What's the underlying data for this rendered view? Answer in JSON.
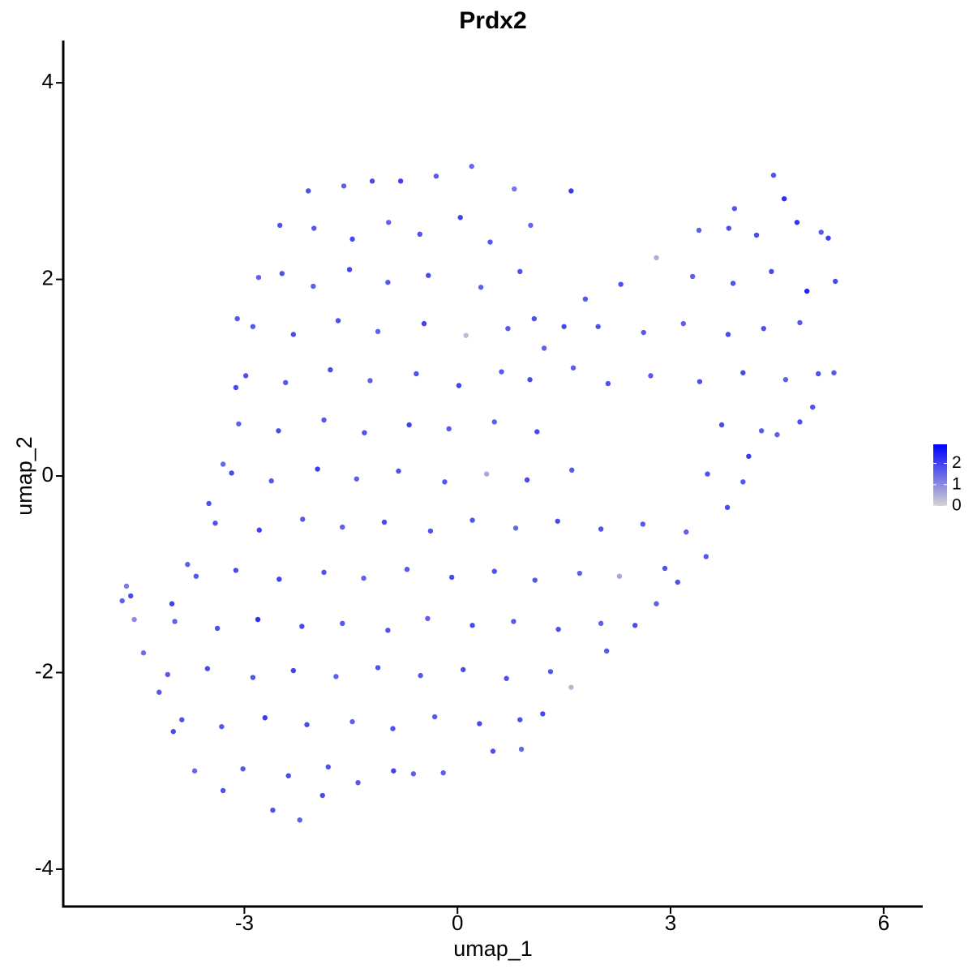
{
  "chart_data": {
    "type": "scatter",
    "title": "Prdx2",
    "x_label": "umap_1",
    "y_label": "umap_2",
    "xlim": [
      -5.55,
      6.55
    ],
    "ylim": [
      -4.38,
      4.43
    ],
    "xticks": [
      -3,
      0,
      3,
      6
    ],
    "yticks": [
      -4,
      -2,
      0,
      2,
      4
    ],
    "color_low": "#d3d3d3",
    "color_high": "#0000ff",
    "clim": [
      0,
      2.9
    ],
    "cticks": [
      0,
      1,
      2
    ],
    "x": [
      -4.72,
      -4.66,
      -4.6,
      -4.55,
      -4.42,
      -2.1,
      -1.6,
      -1.2,
      -0.8,
      -0.3,
      0.2,
      0.8,
      1.6,
      -2.5,
      -2.8,
      -3.1,
      -3.12,
      -3.3,
      -3.5,
      -3.8,
      -4.02,
      -4.2,
      -4.0,
      -3.7,
      -3.3,
      -2.6,
      -2.22,
      -1.9,
      -1.4,
      -0.9,
      -0.2,
      0.5,
      0.9,
      1.2,
      1.6,
      2.1,
      2.5,
      2.8,
      3.1,
      3.5,
      3.8,
      4.1,
      4.5,
      5.0,
      5.3,
      5.32,
      5.22,
      4.6,
      4.45,
      3.9,
      3.4,
      2.8,
      2.3,
      1.8,
      1.5,
      1.22,
      -2.02,
      -1.48,
      -0.97,
      -0.53,
      0.04,
      0.46,
      1.03,
      -2.47,
      -2.03,
      -1.52,
      -0.98,
      -0.41,
      0.33,
      0.88,
      -2.88,
      -2.31,
      -1.68,
      -1.12,
      -0.47,
      0.12,
      0.71,
      1.08,
      -2.98,
      -2.42,
      -1.79,
      -1.23,
      -0.58,
      0.02,
      0.62,
      1.02,
      1.63,
      2.12,
      -3.08,
      -2.52,
      -1.88,
      -1.31,
      -0.68,
      -0.12,
      0.52,
      1.12,
      -3.18,
      -2.62,
      -1.97,
      -1.42,
      -0.83,
      -0.18,
      0.41,
      0.98,
      1.61,
      -3.41,
      -2.79,
      -2.18,
      -1.62,
      -1.03,
      -0.38,
      0.21,
      0.82,
      1.41,
      2.02,
      2.61,
      3.22,
      -3.68,
      -3.12,
      -2.51,
      -1.88,
      -1.32,
      -0.71,
      -0.08,
      0.52,
      1.09,
      1.72,
      2.28,
      2.92,
      -3.98,
      -3.38,
      -2.81,
      -2.19,
      -1.62,
      -0.98,
      -0.42,
      0.21,
      0.79,
      1.42,
      2.02,
      -4.08,
      -3.52,
      -2.88,
      -2.31,
      -1.71,
      -1.12,
      -0.52,
      0.08,
      0.69,
      1.31,
      -3.88,
      -3.32,
      -2.71,
      -2.12,
      -1.48,
      -0.91,
      -0.32,
      0.31,
      0.88,
      -3.02,
      -2.38,
      -1.82,
      -0.62,
      3.82,
      4.21,
      4.78,
      5.12,
      3.31,
      3.88,
      4.42,
      4.92,
      1.98,
      2.62,
      3.18,
      3.81,
      4.31,
      4.82,
      2.72,
      3.41,
      4.02,
      4.62,
      5.08,
      3.72,
      4.28,
      4.82,
      3.52,
      4.02
    ],
    "y": [
      -1.27,
      -1.12,
      -1.22,
      -1.46,
      -1.8,
      2.9,
      2.95,
      3.0,
      3.0,
      3.05,
      3.15,
      2.92,
      2.9,
      2.55,
      2.02,
      1.6,
      0.9,
      0.12,
      -0.28,
      -0.9,
      -1.3,
      -2.2,
      -2.6,
      -3.0,
      -3.2,
      -3.4,
      -3.5,
      -3.25,
      -3.12,
      -3.0,
      -3.02,
      -2.8,
      -2.78,
      -2.42,
      -2.15,
      -1.78,
      -1.52,
      -1.3,
      -1.08,
      -0.82,
      -0.32,
      0.2,
      0.42,
      0.7,
      1.05,
      1.98,
      2.42,
      2.82,
      3.06,
      2.72,
      2.5,
      2.22,
      1.95,
      1.8,
      1.52,
      1.3,
      2.52,
      2.41,
      2.58,
      2.46,
      2.63,
      2.38,
      2.55,
      2.06,
      1.93,
      2.1,
      1.97,
      2.04,
      1.92,
      2.08,
      1.52,
      1.44,
      1.58,
      1.47,
      1.55,
      1.43,
      1.5,
      1.6,
      1.02,
      0.95,
      1.08,
      0.97,
      1.04,
      0.92,
      1.06,
      0.98,
      1.1,
      0.94,
      0.53,
      0.46,
      0.57,
      0.44,
      0.52,
      0.48,
      0.55,
      0.45,
      0.03,
      -0.05,
      0.07,
      -0.03,
      0.05,
      -0.06,
      0.02,
      -0.04,
      0.06,
      -0.48,
      -0.55,
      -0.44,
      -0.52,
      -0.47,
      -0.56,
      -0.45,
      -0.53,
      -0.46,
      -0.54,
      -0.49,
      -0.57,
      -1.02,
      -0.96,
      -1.05,
      -0.98,
      -1.04,
      -0.95,
      -1.03,
      -0.97,
      -1.06,
      -0.99,
      -1.02,
      -0.94,
      -1.48,
      -1.55,
      -1.46,
      -1.53,
      -1.5,
      -1.57,
      -1.45,
      -1.52,
      -1.48,
      -1.56,
      -1.5,
      -2.02,
      -1.96,
      -2.05,
      -1.98,
      -2.04,
      -1.95,
      -2.03,
      -1.97,
      -2.06,
      -1.99,
      -2.48,
      -2.55,
      -2.46,
      -2.53,
      -2.5,
      -2.57,
      -2.45,
      -2.52,
      -2.48,
      -2.98,
      -3.05,
      -2.96,
      -3.03,
      2.52,
      2.45,
      2.58,
      2.48,
      2.03,
      1.96,
      2.08,
      1.88,
      1.52,
      1.46,
      1.55,
      1.44,
      1.5,
      1.56,
      1.02,
      0.96,
      1.05,
      0.98,
      1.04,
      0.52,
      0.46,
      0.55,
      0.02,
      -0.06
    ],
    "values": [
      1.6,
      1.2,
      1.9,
      1.0,
      1.4,
      1.8,
      1.6,
      1.9,
      2.0,
      1.7,
      1.5,
      1.3,
      2.1,
      1.8,
      1.6,
      1.7,
      1.9,
      1.5,
      1.8,
      1.6,
      2.0,
      1.7,
      1.9,
      1.5,
      1.8,
      1.8,
      1.6,
      1.9,
      1.7,
      2.0,
      1.6,
      1.8,
      1.5,
      1.9,
      0.4,
      1.7,
      1.9,
      1.6,
      1.8,
      1.7,
      1.9,
      2.1,
      1.6,
      1.8,
      1.7,
      1.9,
      2.0,
      2.3,
      1.8,
      1.7,
      1.6,
      0.5,
      1.8,
      1.7,
      1.9,
      1.6,
      1.7,
      1.9,
      1.6,
      1.8,
      2.0,
      1.7,
      1.5,
      1.8,
      1.6,
      2.0,
      1.7,
      1.9,
      1.6,
      1.8,
      1.7,
      1.9,
      1.8,
      1.6,
      2.0,
      0.3,
      1.7,
      1.8,
      1.8,
      1.7,
      1.9,
      1.6,
      1.8,
      2.0,
      1.7,
      1.9,
      1.6,
      1.8,
      1.6,
      1.9,
      1.7,
      1.8,
      2.0,
      1.7,
      1.6,
      1.9,
      1.9,
      1.7,
      2.1,
      1.6,
      1.8,
      1.7,
      0.6,
      1.9,
      1.7,
      1.8,
      2.0,
      1.7,
      1.6,
      1.9,
      1.8,
      1.7,
      1.5,
      1.9,
      1.8,
      1.7,
      1.6,
      1.7,
      1.9,
      2.0,
      1.8,
      1.6,
      1.7,
      1.9,
      1.8,
      1.7,
      1.6,
      0.6,
      1.8,
      1.6,
      1.8,
      2.3,
      1.9,
      1.7,
      1.8,
      1.6,
      1.9,
      1.7,
      1.8,
      1.6,
      1.7,
      1.9,
      1.8,
      2.0,
      1.6,
      1.8,
      1.7,
      1.9,
      1.8,
      1.7,
      1.8,
      1.7,
      2.1,
      1.9,
      1.6,
      1.8,
      1.7,
      1.9,
      1.8,
      1.7,
      1.9,
      1.8,
      1.6,
      1.8,
      1.9,
      2.2,
      1.7,
      1.6,
      1.8,
      1.9,
      2.4,
      1.8,
      1.7,
      1.6,
      1.9,
      1.8,
      1.7,
      1.7,
      1.8,
      1.9,
      1.6,
      1.8,
      1.9,
      1.7,
      1.8,
      1.8,
      1.7
    ]
  }
}
